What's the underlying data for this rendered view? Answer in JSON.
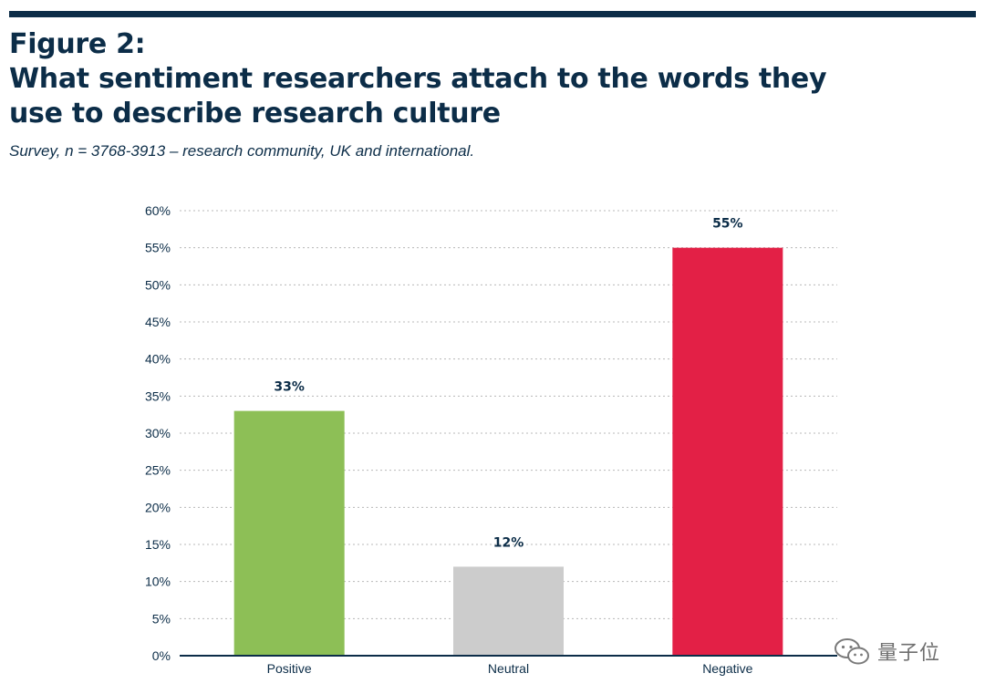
{
  "header": {
    "title_lines": [
      "Figure 2:",
      "What sentiment researchers attach to the words they",
      "use to describe research culture"
    ],
    "subtitle": "Survey, n = 3768-3913 – research community, UK and international."
  },
  "chart_data": {
    "type": "bar",
    "title": "What sentiment researchers attach to the words they use to describe research culture",
    "categories": [
      "Positive",
      "Neutral",
      "Negative"
    ],
    "values": [
      33,
      12,
      55
    ],
    "value_labels": [
      "33%",
      "12%",
      "55%"
    ],
    "bar_colors": [
      "#8dbf56",
      "#cccccc",
      "#e32046"
    ],
    "xlabel": "",
    "ylabel": "",
    "ylim": [
      0,
      60
    ],
    "yticks": [
      0,
      5,
      10,
      15,
      20,
      25,
      30,
      35,
      40,
      45,
      50,
      55,
      60
    ],
    "ytick_labels": [
      "0%",
      "5%",
      "10%",
      "15%",
      "20%",
      "25%",
      "30%",
      "35%",
      "40%",
      "45%",
      "50%",
      "55%",
      "60%"
    ],
    "grid": true,
    "legend": "none"
  },
  "colors": {
    "text": "#0c2d48",
    "grid": "#b8b8b8",
    "axis": "#0c2d48"
  },
  "watermark": {
    "icon": "wechat-icon",
    "text": "量子位"
  }
}
